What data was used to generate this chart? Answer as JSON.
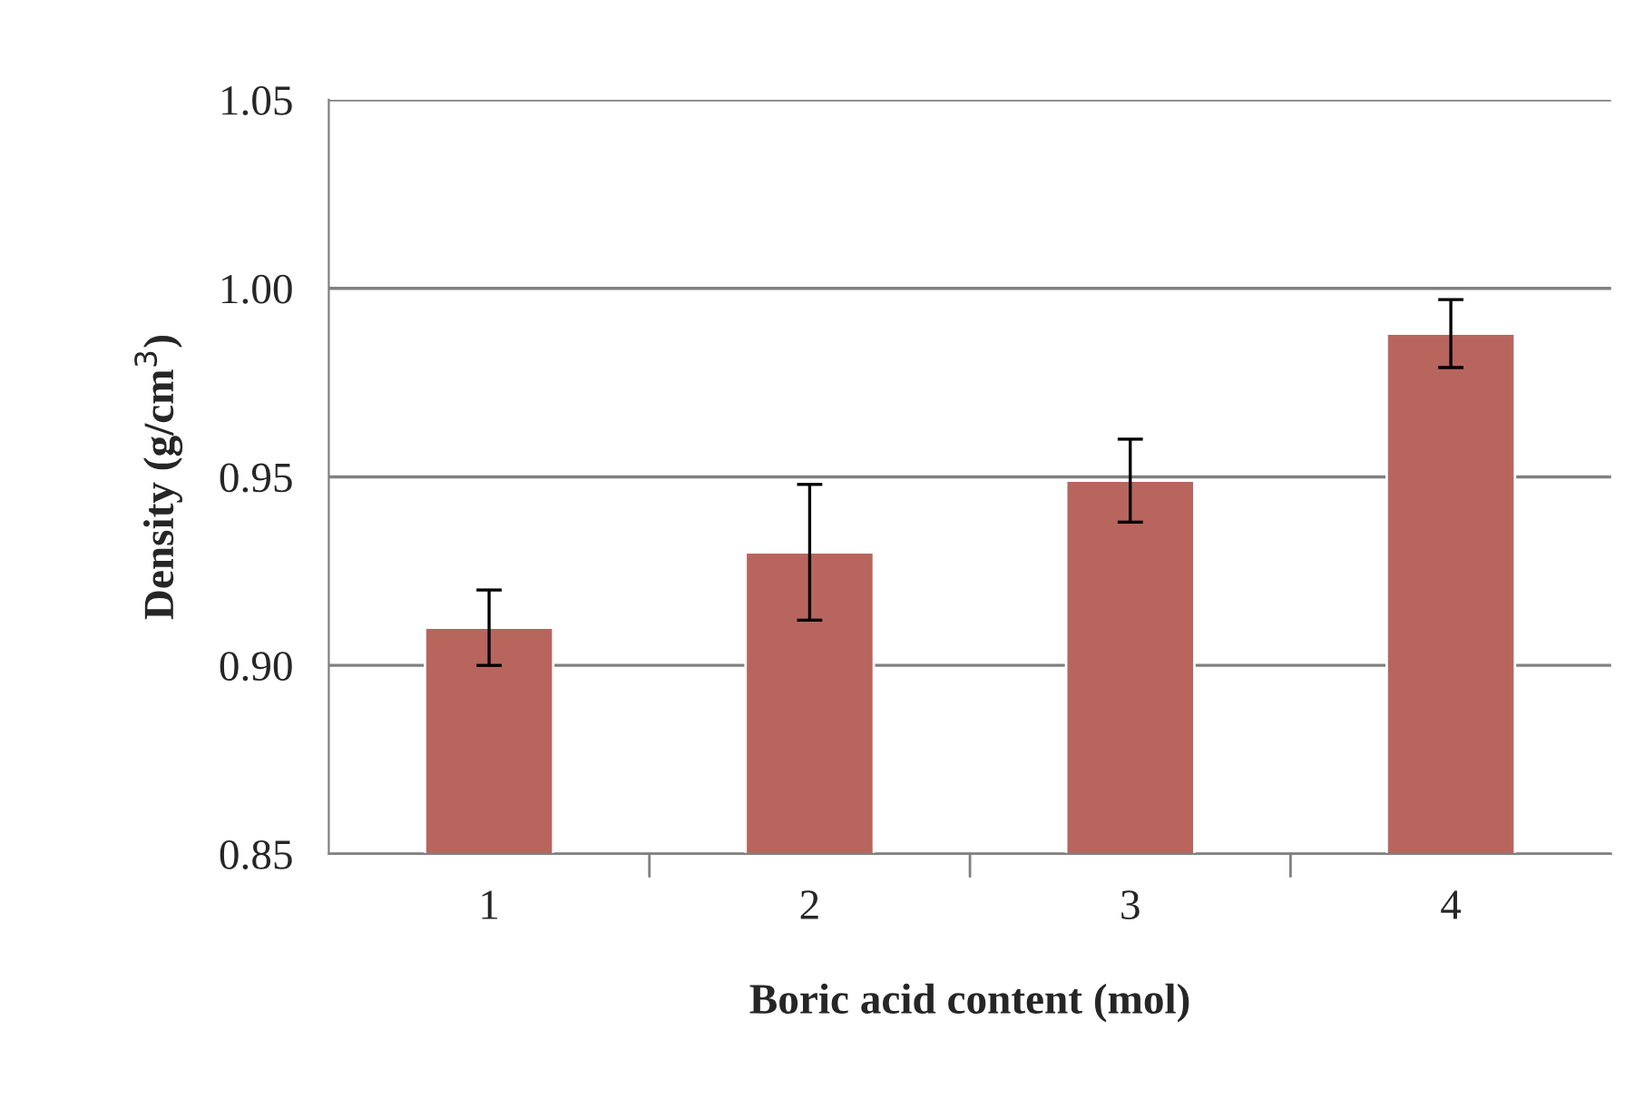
{
  "chart_data": {
    "type": "bar",
    "xlabel": "Boric acid content (mol)",
    "ylabel": "Density (g/cm$^{3}$)",
    "categories": [
      "1",
      "2",
      "3",
      "4"
    ],
    "values": [
      0.91,
      0.93,
      0.949,
      0.988
    ],
    "errors": [
      0.01,
      0.018,
      0.011,
      0.009
    ],
    "color": "#b8655e",
    "ylim": [
      0.85,
      1.05
    ],
    "yticks": [
      {
        "value": 0.85,
        "label": "0.85"
      },
      {
        "value": 0.9,
        "label": "0.90"
      },
      {
        "value": 0.95,
        "label": "0.95"
      },
      {
        "value": 1.0,
        "label": "1.00"
      },
      {
        "value": 1.05,
        "label": "1.05"
      }
    ],
    "grid": "y"
  }
}
